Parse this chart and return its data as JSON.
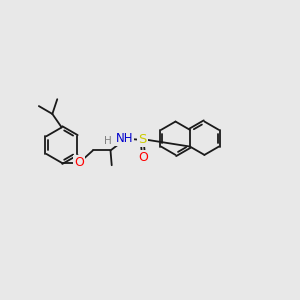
{
  "bg_color": "#e8e8e8",
  "bond_color": "#1a1a1a",
  "bond_width": 1.3,
  "atom_colors": {
    "O": "#ff0000",
    "N": "#0000cd",
    "S": "#cccc00",
    "H": "#808080"
  },
  "figsize": [
    3.0,
    3.0
  ],
  "dpi": 100
}
